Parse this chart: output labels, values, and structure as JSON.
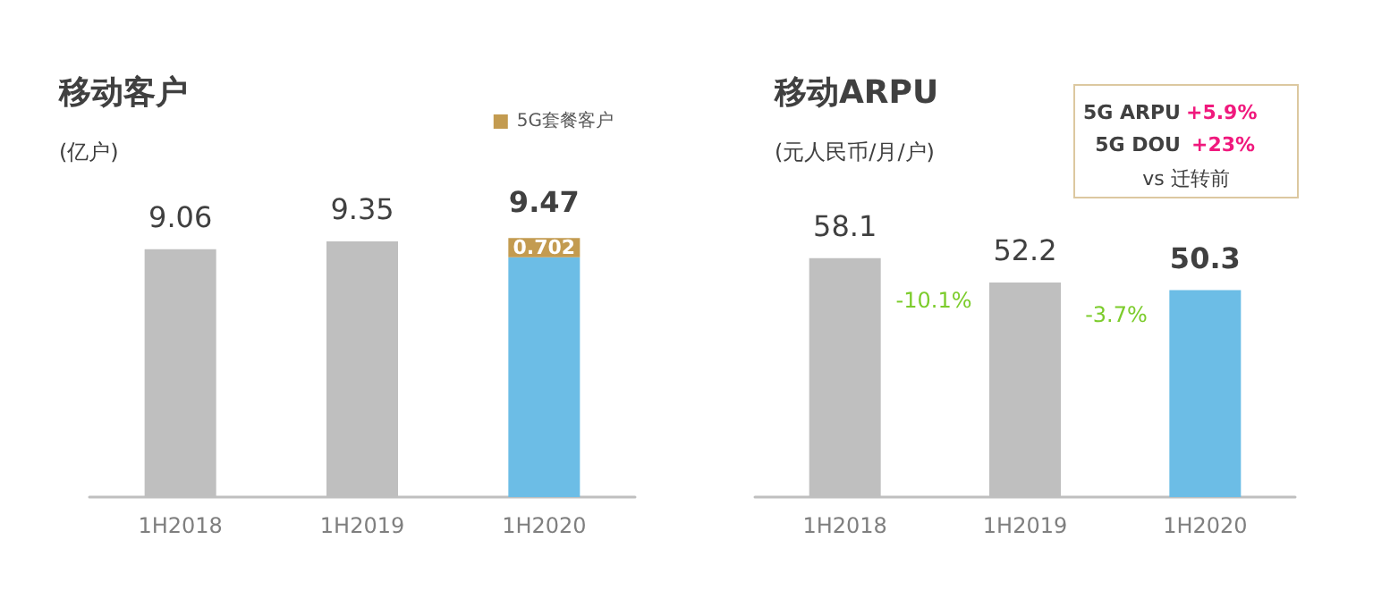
{
  "chart_data": [
    {
      "type": "bar",
      "title": "移动客户",
      "subtitle": "(亿户)",
      "categories": [
        "1H2018",
        "1H2019",
        "1H2020"
      ],
      "stacked": true,
      "series": [
        {
          "colors": [
            "#bfbfbf",
            "#bfbfbf",
            "#6cbde6"
          ],
          "values": [
            9.06,
            9.35,
            8.768
          ],
          "value_labels": [
            "9.06",
            "9.35",
            null
          ]
        },
        {
          "name": "5G套餐客户",
          "color": "#c39b50",
          "values": [
            null,
            null,
            0.702
          ],
          "value_labels": [
            null,
            null,
            "0.702"
          ]
        }
      ],
      "totals": [
        null,
        null,
        "9.47"
      ],
      "tick_labels": "x",
      "grid": false,
      "legend": "top right"
    },
    {
      "type": "bar",
      "title": "移动ARPU",
      "subtitle": "(元人民币/月/户)",
      "categories": [
        "1H2018",
        "1H2019",
        "1H2020"
      ],
      "values": [
        58.1,
        52.2,
        50.3
      ],
      "colors": [
        "#bfbfbf",
        "#bfbfbf",
        "#6cbde6"
      ],
      "data_labels": true,
      "tick_labels": "x",
      "grid": false,
      "annotations": [
        "-10.1%",
        "-3.7%",
        "5G ARPU",
        "+5.9%",
        "5G DOU",
        "+23%",
        "vs 迁转前"
      ]
    }
  ]
}
